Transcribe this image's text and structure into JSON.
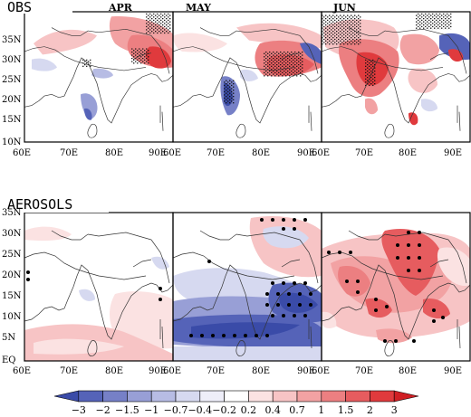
{
  "rows": [
    {
      "title": "OBS",
      "months": [
        "APR",
        "MAY",
        "JUN"
      ]
    },
    {
      "title": "AEROSOLS",
      "months": []
    }
  ],
  "y_ticks": [
    "35N",
    "30N",
    "25N",
    "20N",
    "15N",
    "10N",
    "5N",
    "EQ"
  ],
  "x_ticks": [
    "60E",
    "70E",
    "80E",
    "90E"
  ],
  "colorbar": {
    "labels": [
      "−3",
      "−2",
      "−1.5",
      "−1",
      "−0.7",
      "−0.4",
      "−0.2",
      "0.2",
      "0.4",
      "0.7",
      "1",
      "1.5",
      "2",
      "3"
    ],
    "colors": [
      "#3a4ba8",
      "#5563b8",
      "#7680c7",
      "#989fd6",
      "#b7bce4",
      "#d6d9f0",
      "#eeeef9",
      "#ffffff",
      "#fbe2e2",
      "#f7c4c5",
      "#f2a2a3",
      "#ec7f81",
      "#e65c5f",
      "#e03a3d",
      "#d01f24"
    ]
  }
}
